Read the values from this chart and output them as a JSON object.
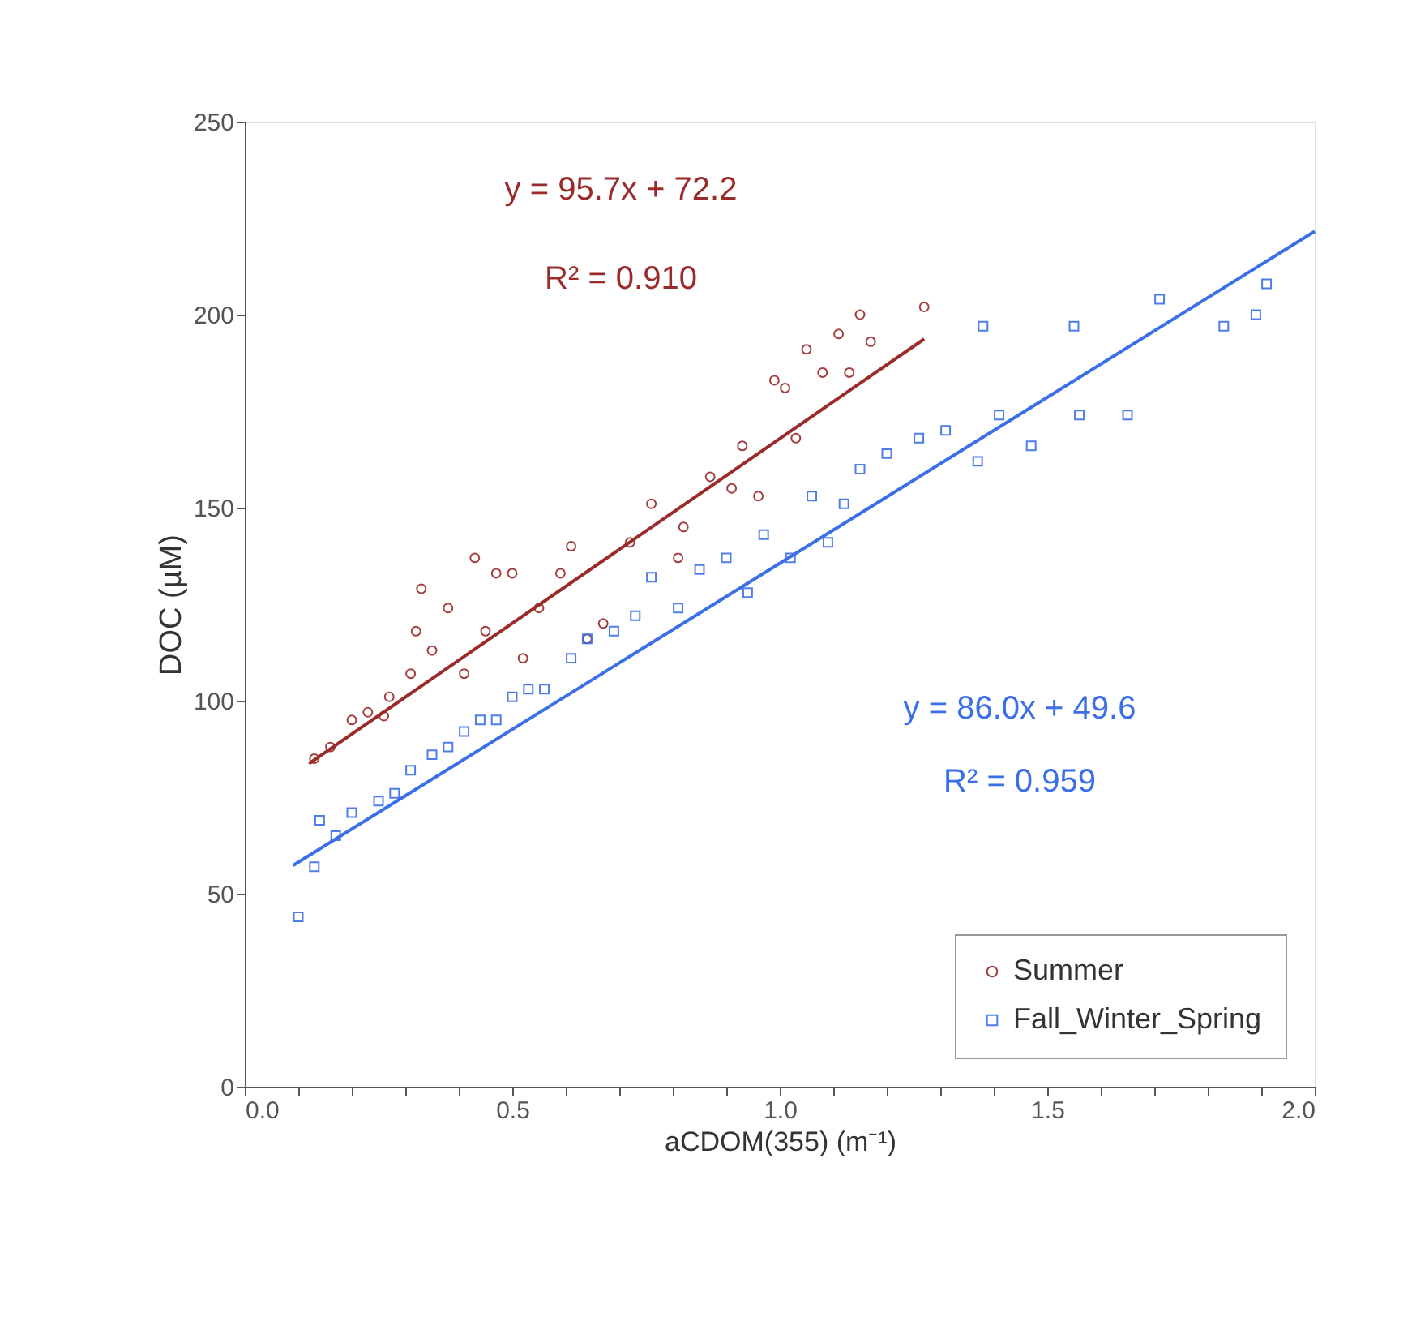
{
  "chart_data": {
    "type": "scatter",
    "xlabel": "aCDOM(355) (m⁻¹)",
    "ylabel": "DOC (µM)",
    "xlim": [
      0,
      2.0
    ],
    "ylim": [
      0,
      250
    ],
    "xticks": [
      {
        "value": 0,
        "label": "0.0"
      },
      {
        "value": 0.1,
        "label": null
      },
      {
        "value": 0.2,
        "label": null
      },
      {
        "value": 0.3,
        "label": null
      },
      {
        "value": 0.4,
        "label": null
      },
      {
        "value": 0.5,
        "label": "0.5"
      },
      {
        "value": 0.6,
        "label": null
      },
      {
        "value": 0.7,
        "label": null
      },
      {
        "value": 0.8,
        "label": null
      },
      {
        "value": 0.9,
        "label": null
      },
      {
        "value": 1.0,
        "label": "1.0"
      },
      {
        "value": 1.1,
        "label": null
      },
      {
        "value": 1.2,
        "label": null
      },
      {
        "value": 1.3,
        "label": null
      },
      {
        "value": 1.4,
        "label": null
      },
      {
        "value": 1.5,
        "label": "1.5"
      },
      {
        "value": 1.6,
        "label": null
      },
      {
        "value": 1.7,
        "label": null
      },
      {
        "value": 1.8,
        "label": null
      },
      {
        "value": 1.9,
        "label": null
      },
      {
        "value": 2.0,
        "label": "2.0"
      }
    ],
    "yticks": [
      0,
      50,
      100,
      150,
      200,
      250
    ],
    "grid": false,
    "legend": "bottom right",
    "annotations": [
      "y = 95.7x + 72.2",
      "R² = 0.910",
      "y = 86.0x + 49.6",
      "R² = 0.959"
    ],
    "series": [
      {
        "name": "Summer",
        "marker": "circle",
        "color": "#9b2a2a",
        "x": [
          0.13,
          0.16,
          0.2,
          0.23,
          0.26,
          0.27,
          0.31,
          0.32,
          0.33,
          0.35,
          0.38,
          0.41,
          0.43,
          0.45,
          0.47,
          0.5,
          0.52,
          0.55,
          0.59,
          0.61,
          0.64,
          0.67,
          0.72,
          0.76,
          0.81,
          0.82,
          0.87,
          0.91,
          0.93,
          0.96,
          0.99,
          1.01,
          1.03,
          1.05,
          1.08,
          1.11,
          1.13,
          1.15,
          1.17,
          1.27
        ],
        "values": [
          85,
          88,
          95,
          97,
          96,
          101,
          107,
          118,
          129,
          113,
          124,
          107,
          137,
          118,
          133,
          133,
          111,
          124,
          133,
          140,
          116,
          120,
          141,
          151,
          137,
          145,
          158,
          155,
          166,
          153,
          183,
          181,
          168,
          191,
          185,
          195,
          185,
          200,
          193,
          202
        ]
      },
      {
        "name": "Fall_Winter_Spring",
        "marker": "square",
        "color": "#3b6fe8",
        "x": [
          0.1,
          0.13,
          0.14,
          0.17,
          0.2,
          0.25,
          0.28,
          0.31,
          0.35,
          0.38,
          0.41,
          0.44,
          0.47,
          0.5,
          0.53,
          0.56,
          0.61,
          0.64,
          0.69,
          0.73,
          0.76,
          0.81,
          0.85,
          0.9,
          0.94,
          0.97,
          1.02,
          1.06,
          1.09,
          1.12,
          1.15,
          1.2,
          1.26,
          1.31,
          1.37,
          1.38,
          1.41,
          1.47,
          1.55,
          1.56,
          1.65,
          1.71,
          1.83,
          1.89,
          1.91
        ],
        "values": [
          44,
          57,
          69,
          65,
          71,
          74,
          76,
          82,
          86,
          88,
          92,
          95,
          95,
          101,
          103,
          103,
          111,
          116,
          118,
          122,
          132,
          124,
          134,
          137,
          128,
          143,
          137,
          153,
          141,
          151,
          160,
          164,
          168,
          170,
          162,
          197,
          174,
          166,
          197,
          174,
          174,
          204,
          197,
          200,
          208
        ]
      },
      {
        "type": "line",
        "color": "#9b2a2a",
        "x": [
          0.12,
          1.27
        ],
        "values": [
          83.7,
          193.7
        ]
      },
      {
        "type": "line",
        "color": "#3b6fe8",
        "x": [
          0.09,
          2.0
        ],
        "values": [
          57.3,
          221.6
        ]
      }
    ]
  }
}
